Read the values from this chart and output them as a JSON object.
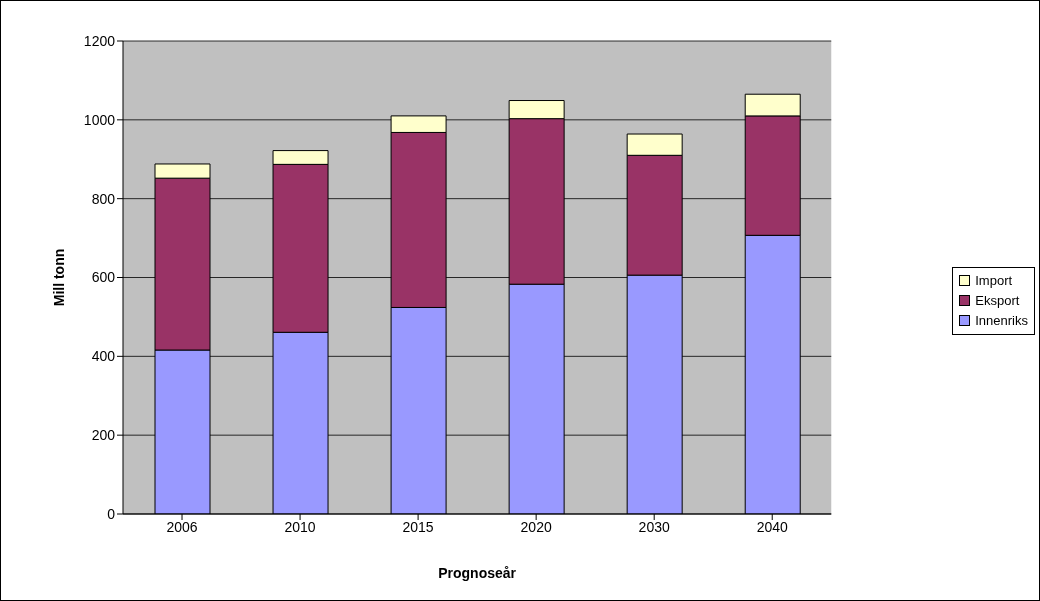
{
  "chart_data": {
    "type": "bar",
    "stacked": true,
    "xlabel": "Prognoseår",
    "ylabel": "Mill tonn",
    "categories": [
      "2006",
      "2010",
      "2015",
      "2020",
      "2030",
      "2040"
    ],
    "series": [
      {
        "name": "Innenriks",
        "color": "#9999ff",
        "values": [
          416,
          461,
          524,
          583,
          606,
          707
        ]
      },
      {
        "name": "Eksport",
        "color": "#993366",
        "values": [
          436,
          426,
          444,
          420,
          304,
          303
        ]
      },
      {
        "name": "Import",
        "color": "#ffffcc",
        "values": [
          36,
          35,
          42,
          46,
          54,
          55
        ]
      }
    ],
    "ylim": [
      0,
      1200
    ],
    "yticks": [
      0,
      200,
      400,
      600,
      800,
      1000,
      1200
    ],
    "grid": "y",
    "legend": "right"
  }
}
